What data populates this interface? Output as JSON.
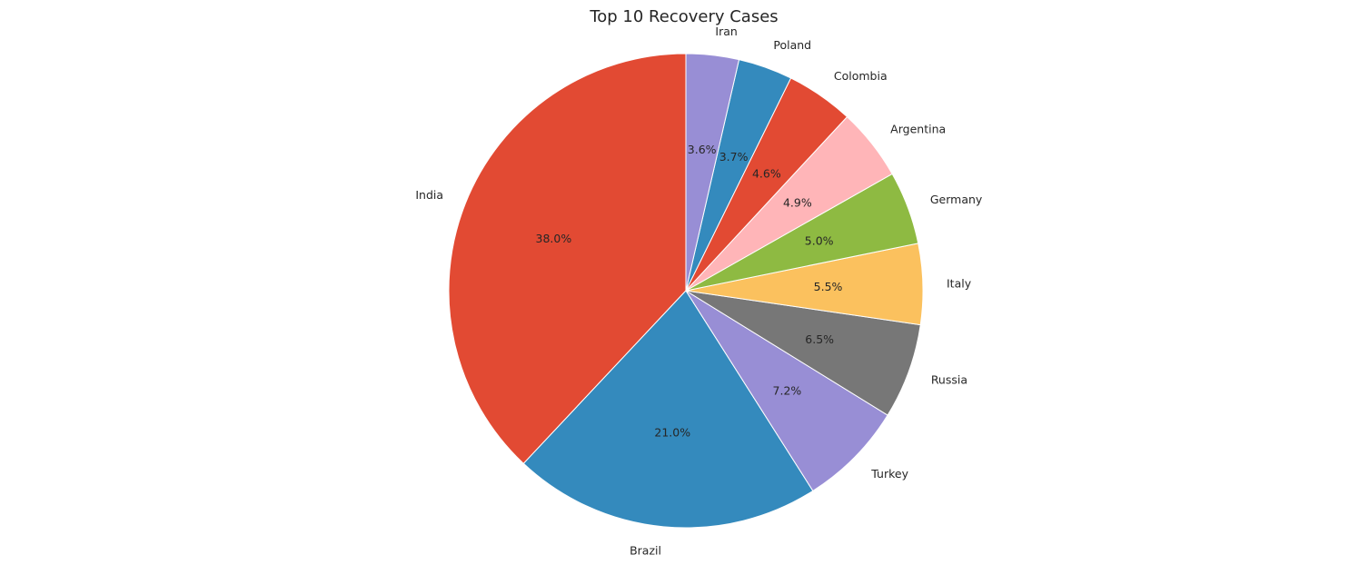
{
  "chart_data": {
    "type": "pie",
    "title": "Top 10 Recovery Cases",
    "start_angle_deg": 90,
    "direction": "counterclockwise",
    "categories": [
      "India",
      "Brazil",
      "Turkey",
      "Russia",
      "Italy",
      "Germany",
      "Argentina",
      "Colombia",
      "Poland",
      "Iran"
    ],
    "values": [
      38.0,
      21.0,
      7.2,
      6.5,
      5.5,
      5.0,
      4.9,
      4.6,
      3.7,
      3.6
    ],
    "percent_labels": [
      "38.0%",
      "21.0%",
      "7.2%",
      "6.5%",
      "5.5%",
      "5.0%",
      "4.9%",
      "4.6%",
      "3.7%",
      "3.6%"
    ],
    "colors": [
      "#E24A33",
      "#348ABD",
      "#988ED5",
      "#777777",
      "#FBC15E",
      "#8EBA42",
      "#FFB5B8",
      "#E24A33",
      "#348ABD",
      "#988ED5"
    ]
  }
}
